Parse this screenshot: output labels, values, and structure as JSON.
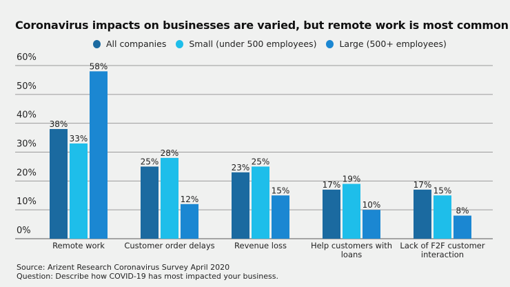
{
  "chart_data": {
    "type": "bar",
    "title": "Coronavirus impacts on businesses are varied, but remote work is most common",
    "categories": [
      [
        "Remote work"
      ],
      [
        "Customer order delays"
      ],
      [
        "Revenue loss"
      ],
      [
        "Help customers with",
        "loans"
      ],
      [
        "Lack of F2F customer",
        "interaction"
      ]
    ],
    "series": [
      {
        "name": "All companies",
        "color": "#1b6aa0",
        "values": [
          38,
          25,
          23,
          17,
          17
        ]
      },
      {
        "name": "Small (under 500 employees)",
        "color": "#1ebeea",
        "values": [
          33,
          28,
          25,
          19,
          15
        ]
      },
      {
        "name": "Large (500+ employees)",
        "color": "#1b87d2",
        "values": [
          58,
          12,
          15,
          10,
          8
        ]
      }
    ],
    "yticks": [
      0,
      10,
      20,
      30,
      40,
      50,
      60
    ],
    "ytick_suffix": "%",
    "ylim": [
      0,
      60
    ],
    "xlabel": "",
    "ylabel": "",
    "grid": true,
    "legend_position": "top-center",
    "data_label_suffix": "%"
  },
  "footer": {
    "source": "Source: Arizent Research Coronavirus Survey April 2020",
    "question": "Question: Describe how COVID-19 has most impacted your business."
  }
}
